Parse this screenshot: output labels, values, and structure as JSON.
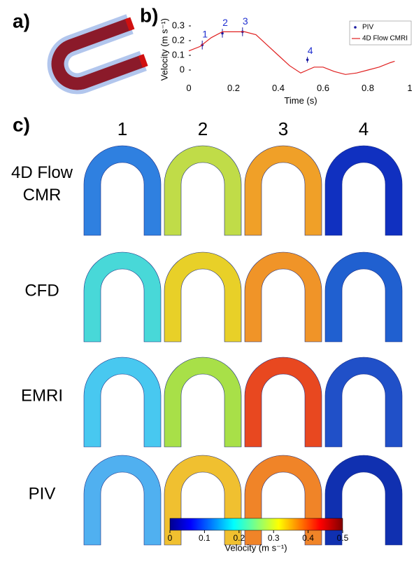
{
  "panel_labels": [
    "a)",
    "b)",
    "c)"
  ],
  "chart_data": {
    "type": "line",
    "xlabel": "Time (s)",
    "ylabel": "Velocity (m s⁻¹)",
    "xlim": [
      0,
      1
    ],
    "ylim": [
      -0.07,
      0.35
    ],
    "xticks": [
      0,
      0.2,
      0.4,
      0.6,
      0.8,
      1
    ],
    "yticks": [
      0,
      0.1,
      0.2,
      0.3
    ],
    "legend": "upper right",
    "series": [
      {
        "name": "PIV",
        "color": "#1a1aa0",
        "x": [
          0.06,
          0.15,
          0.24,
          0.53
        ],
        "values": [
          0.17,
          0.25,
          0.26,
          0.07
        ],
        "errors": [
          0.03,
          0.03,
          0.03,
          0.02
        ],
        "point_labels": [
          "1",
          "2",
          "3",
          "4"
        ]
      },
      {
        "name": "4D Flow CMRI",
        "color": "#e02020",
        "x": [
          0,
          0.05,
          0.1,
          0.15,
          0.2,
          0.25,
          0.3,
          0.35,
          0.4,
          0.45,
          0.5,
          0.53,
          0.56,
          0.6,
          0.65,
          0.7,
          0.75,
          0.8,
          0.85,
          0.9,
          0.92
        ],
        "values": [
          0.13,
          0.16,
          0.22,
          0.26,
          0.26,
          0.26,
          0.24,
          0.17,
          0.1,
          0.03,
          -0.02,
          0.0,
          0.02,
          0.02,
          -0.01,
          -0.03,
          -0.02,
          0.0,
          0.02,
          0.05,
          0.06
        ]
      }
    ]
  },
  "panel_c": {
    "columns": [
      "1",
      "2",
      "3",
      "4"
    ],
    "rows": [
      "4D Flow CMR",
      "CFD",
      "EMRI",
      "PIV"
    ]
  },
  "colorbar": {
    "label": "Velocity (m s⁻¹)",
    "ticks": [
      0,
      0.1,
      0.2,
      0.3,
      0.4,
      0.5
    ]
  }
}
